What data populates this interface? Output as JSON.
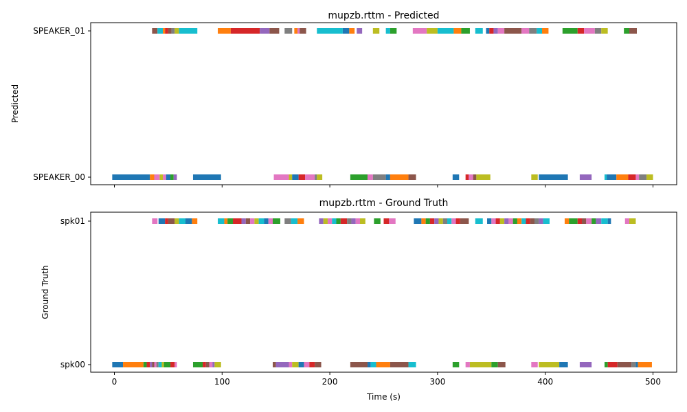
{
  "chart_data": [
    {
      "type": "timeline",
      "title": "mupzb.rttm - Predicted",
      "ylabel": "Predicted",
      "xlabel": "",
      "xlim": [
        -22,
        522
      ],
      "xticks": [
        0,
        100,
        200,
        300,
        400,
        500
      ],
      "xtick_labels_visible": false,
      "speakers": [
        "SPEAKER_00",
        "SPEAKER_01"
      ],
      "colors": [
        "#1f77b4",
        "#ff7f0e",
        "#2ca02c",
        "#d62728",
        "#9467bd",
        "#8c564b",
        "#e377c2",
        "#7f7f7f",
        "#bcbd22",
        "#17becf"
      ],
      "segments": [
        [
          "SPEAKER_01",
          35,
          40,
          "#8c564b"
        ],
        [
          "SPEAKER_01",
          40,
          45,
          "#17becf"
        ],
        [
          "SPEAKER_01",
          45,
          47,
          "#ff7f0e"
        ],
        [
          "SPEAKER_01",
          47,
          50,
          "#d62728"
        ],
        [
          "SPEAKER_01",
          50,
          53,
          "#8c564b"
        ],
        [
          "SPEAKER_01",
          53,
          56,
          "#7f7f7f"
        ],
        [
          "SPEAKER_01",
          56,
          60,
          "#bcbd22"
        ],
        [
          "SPEAKER_01",
          60,
          77,
          "#17becf"
        ],
        [
          "SPEAKER_01",
          96,
          108,
          "#ff7f0e"
        ],
        [
          "SPEAKER_01",
          108,
          135,
          "#d62728"
        ],
        [
          "SPEAKER_01",
          135,
          144,
          "#9467bd"
        ],
        [
          "SPEAKER_01",
          144,
          153,
          "#8c564b"
        ],
        [
          "SPEAKER_01",
          158,
          165,
          "#7f7f7f"
        ],
        [
          "SPEAKER_01",
          167,
          170,
          "#ff7f0e"
        ],
        [
          "SPEAKER_01",
          170,
          172,
          "#e377c2"
        ],
        [
          "SPEAKER_01",
          172,
          178,
          "#8c564b"
        ],
        [
          "SPEAKER_01",
          188,
          212,
          "#17becf"
        ],
        [
          "SPEAKER_01",
          212,
          218,
          "#1f77b4"
        ],
        [
          "SPEAKER_01",
          218,
          223,
          "#ff7f0e"
        ],
        [
          "SPEAKER_01",
          225,
          230,
          "#9467bd"
        ],
        [
          "SPEAKER_01",
          240,
          246,
          "#bcbd22"
        ],
        [
          "SPEAKER_01",
          252,
          256,
          "#17becf"
        ],
        [
          "SPEAKER_01",
          256,
          262,
          "#2ca02c"
        ],
        [
          "SPEAKER_01",
          277,
          290,
          "#e377c2"
        ],
        [
          "SPEAKER_01",
          290,
          300,
          "#bcbd22"
        ],
        [
          "SPEAKER_01",
          300,
          315,
          "#17becf"
        ],
        [
          "SPEAKER_01",
          315,
          322,
          "#ff7f0e"
        ],
        [
          "SPEAKER_01",
          322,
          330,
          "#2ca02c"
        ],
        [
          "SPEAKER_01",
          335,
          342,
          "#17becf"
        ],
        [
          "SPEAKER_01",
          345,
          348,
          "#1f77b4"
        ],
        [
          "SPEAKER_01",
          348,
          352,
          "#d62728"
        ],
        [
          "SPEAKER_01",
          352,
          356,
          "#9467bd"
        ],
        [
          "SPEAKER_01",
          356,
          362,
          "#e377c2"
        ],
        [
          "SPEAKER_01",
          362,
          378,
          "#8c564b"
        ],
        [
          "SPEAKER_01",
          378,
          385,
          "#e377c2"
        ],
        [
          "SPEAKER_01",
          385,
          392,
          "#7f7f7f"
        ],
        [
          "SPEAKER_01",
          392,
          397,
          "#17becf"
        ],
        [
          "SPEAKER_01",
          397,
          403,
          "#ff7f0e"
        ],
        [
          "SPEAKER_01",
          416,
          430,
          "#2ca02c"
        ],
        [
          "SPEAKER_01",
          430,
          436,
          "#d62728"
        ],
        [
          "SPEAKER_01",
          436,
          446,
          "#e377c2"
        ],
        [
          "SPEAKER_01",
          446,
          452,
          "#7f7f7f"
        ],
        [
          "SPEAKER_01",
          452,
          458,
          "#bcbd22"
        ],
        [
          "SPEAKER_01",
          473,
          478,
          "#2ca02c"
        ],
        [
          "SPEAKER_01",
          478,
          485,
          "#8c564b"
        ],
        [
          "SPEAKER_00",
          -2,
          33,
          "#1f77b4"
        ],
        [
          "SPEAKER_00",
          33,
          37,
          "#ff7f0e"
        ],
        [
          "SPEAKER_00",
          37,
          42,
          "#e377c2"
        ],
        [
          "SPEAKER_00",
          42,
          45,
          "#bcbd22"
        ],
        [
          "SPEAKER_00",
          45,
          48,
          "#e377c2"
        ],
        [
          "SPEAKER_00",
          48,
          52,
          "#1f77b4"
        ],
        [
          "SPEAKER_00",
          52,
          55,
          "#2ca02c"
        ],
        [
          "SPEAKER_00",
          55,
          58,
          "#9467bd"
        ],
        [
          "SPEAKER_00",
          73,
          99,
          "#1f77b4"
        ],
        [
          "SPEAKER_00",
          148,
          162,
          "#e377c2"
        ],
        [
          "SPEAKER_00",
          162,
          165,
          "#bcbd22"
        ],
        [
          "SPEAKER_00",
          165,
          171,
          "#1f77b4"
        ],
        [
          "SPEAKER_00",
          171,
          177,
          "#d62728"
        ],
        [
          "SPEAKER_00",
          177,
          186,
          "#e377c2"
        ],
        [
          "SPEAKER_00",
          186,
          188,
          "#7f7f7f"
        ],
        [
          "SPEAKER_00",
          188,
          193,
          "#bcbd22"
        ],
        [
          "SPEAKER_00",
          219,
          235,
          "#2ca02c"
        ],
        [
          "SPEAKER_00",
          235,
          240,
          "#e377c2"
        ],
        [
          "SPEAKER_00",
          240,
          252,
          "#7f7f7f"
        ],
        [
          "SPEAKER_00",
          252,
          256,
          "#1f77b4"
        ],
        [
          "SPEAKER_00",
          256,
          273,
          "#ff7f0e"
        ],
        [
          "SPEAKER_00",
          273,
          280,
          "#8c564b"
        ],
        [
          "SPEAKER_00",
          314,
          320,
          "#1f77b4"
        ],
        [
          "SPEAKER_00",
          326,
          329,
          "#d62728"
        ],
        [
          "SPEAKER_00",
          329,
          333,
          "#e377c2"
        ],
        [
          "SPEAKER_00",
          333,
          336,
          "#8c564b"
        ],
        [
          "SPEAKER_00",
          336,
          349,
          "#bcbd22"
        ],
        [
          "SPEAKER_00",
          387,
          393,
          "#bcbd22"
        ],
        [
          "SPEAKER_00",
          394,
          421,
          "#1f77b4"
        ],
        [
          "SPEAKER_00",
          432,
          443,
          "#9467bd"
        ],
        [
          "SPEAKER_00",
          455,
          457,
          "#17becf"
        ],
        [
          "SPEAKER_00",
          457,
          466,
          "#1f77b4"
        ],
        [
          "SPEAKER_00",
          466,
          477,
          "#ff7f0e"
        ],
        [
          "SPEAKER_00",
          477,
          484,
          "#d62728"
        ],
        [
          "SPEAKER_00",
          484,
          487,
          "#e377c2"
        ],
        [
          "SPEAKER_00",
          487,
          494,
          "#7f7f7f"
        ],
        [
          "SPEAKER_00",
          494,
          500,
          "#bcbd22"
        ]
      ]
    },
    {
      "type": "timeline",
      "title": "mupzb.rttm - Ground Truth",
      "ylabel": "Ground Truth",
      "xlabel": "Time (s)",
      "xlim": [
        -22,
        522
      ],
      "xticks": [
        0,
        100,
        200,
        300,
        400,
        500
      ],
      "xtick_labels_visible": true,
      "speakers": [
        "spk00",
        "spk01"
      ],
      "colors": [
        "#1f77b4",
        "#ff7f0e",
        "#2ca02c",
        "#d62728",
        "#9467bd",
        "#8c564b",
        "#e377c2",
        "#7f7f7f",
        "#bcbd22",
        "#17becf"
      ],
      "segments": [
        [
          "spk01",
          35,
          40,
          "#e377c2"
        ],
        [
          "spk01",
          41,
          47,
          "#1f77b4"
        ],
        [
          "spk01",
          47,
          50,
          "#d62728"
        ],
        [
          "spk01",
          50,
          56,
          "#8c564b"
        ],
        [
          "spk01",
          56,
          60,
          "#bcbd22"
        ],
        [
          "spk01",
          60,
          66,
          "#17becf"
        ],
        [
          "spk01",
          66,
          72,
          "#1f77b4"
        ],
        [
          "spk01",
          72,
          77,
          "#ff7f0e"
        ],
        [
          "spk01",
          96,
          102,
          "#17becf"
        ],
        [
          "spk01",
          102,
          105,
          "#ff7f0e"
        ],
        [
          "spk01",
          105,
          110,
          "#2ca02c"
        ],
        [
          "spk01",
          110,
          118,
          "#d62728"
        ],
        [
          "spk01",
          118,
          122,
          "#9467bd"
        ],
        [
          "spk01",
          122,
          126,
          "#8c564b"
        ],
        [
          "spk01",
          126,
          130,
          "#e377c2"
        ],
        [
          "spk01",
          130,
          134,
          "#bcbd22"
        ],
        [
          "spk01",
          134,
          139,
          "#17becf"
        ],
        [
          "spk01",
          139,
          143,
          "#1f77b4"
        ],
        [
          "spk01",
          143,
          147,
          "#e377c2"
        ],
        [
          "spk01",
          147,
          154,
          "#2ca02c"
        ],
        [
          "spk01",
          158,
          164,
          "#7f7f7f"
        ],
        [
          "spk01",
          164,
          170,
          "#17becf"
        ],
        [
          "spk01",
          170,
          176,
          "#ff7f0e"
        ],
        [
          "spk01",
          190,
          194,
          "#9467bd"
        ],
        [
          "spk01",
          194,
          198,
          "#bcbd22"
        ],
        [
          "spk01",
          198,
          202,
          "#e377c2"
        ],
        [
          "spk01",
          202,
          206,
          "#17becf"
        ],
        [
          "spk01",
          206,
          210,
          "#2ca02c"
        ],
        [
          "spk01",
          210,
          216,
          "#d62728"
        ],
        [
          "spk01",
          216,
          220,
          "#7f7f7f"
        ],
        [
          "spk01",
          220,
          224,
          "#9467bd"
        ],
        [
          "spk01",
          224,
          228,
          "#e377c2"
        ],
        [
          "spk01",
          228,
          233,
          "#bcbd22"
        ],
        [
          "spk01",
          241,
          247,
          "#2ca02c"
        ],
        [
          "spk01",
          250,
          255,
          "#d62728"
        ],
        [
          "spk01",
          255,
          261,
          "#e377c2"
        ],
        [
          "spk01",
          278,
          285,
          "#1f77b4"
        ],
        [
          "spk01",
          285,
          289,
          "#ff7f0e"
        ],
        [
          "spk01",
          289,
          293,
          "#2ca02c"
        ],
        [
          "spk01",
          293,
          297,
          "#d62728"
        ],
        [
          "spk01",
          297,
          301,
          "#9467bd"
        ],
        [
          "spk01",
          301,
          305,
          "#bcbd22"
        ],
        [
          "spk01",
          305,
          309,
          "#7f7f7f"
        ],
        [
          "spk01",
          309,
          313,
          "#17becf"
        ],
        [
          "spk01",
          313,
          317,
          "#e377c2"
        ],
        [
          "spk01",
          317,
          321,
          "#d62728"
        ],
        [
          "spk01",
          321,
          329,
          "#8c564b"
        ],
        [
          "spk01",
          335,
          342,
          "#17becf"
        ],
        [
          "spk01",
          346,
          350,
          "#1f77b4"
        ],
        [
          "spk01",
          350,
          354,
          "#e377c2"
        ],
        [
          "spk01",
          354,
          358,
          "#d62728"
        ],
        [
          "spk01",
          358,
          362,
          "#bcbd22"
        ],
        [
          "spk01",
          362,
          366,
          "#9467bd"
        ],
        [
          "spk01",
          366,
          370,
          "#e377c2"
        ],
        [
          "spk01",
          370,
          374,
          "#2ca02c"
        ],
        [
          "spk01",
          374,
          378,
          "#ff7f0e"
        ],
        [
          "spk01",
          378,
          382,
          "#17becf"
        ],
        [
          "spk01",
          382,
          386,
          "#d62728"
        ],
        [
          "spk01",
          386,
          390,
          "#8c564b"
        ],
        [
          "spk01",
          390,
          394,
          "#7f7f7f"
        ],
        [
          "spk01",
          394,
          398,
          "#9467bd"
        ],
        [
          "spk01",
          398,
          404,
          "#17becf"
        ],
        [
          "spk01",
          418,
          422,
          "#ff7f0e"
        ],
        [
          "spk01",
          422,
          430,
          "#2ca02c"
        ],
        [
          "spk01",
          430,
          434,
          "#d62728"
        ],
        [
          "spk01",
          434,
          438,
          "#8c564b"
        ],
        [
          "spk01",
          438,
          443,
          "#e377c2"
        ],
        [
          "spk01",
          443,
          447,
          "#2ca02c"
        ],
        [
          "spk01",
          447,
          452,
          "#9467bd"
        ],
        [
          "spk01",
          452,
          458,
          "#17becf"
        ],
        [
          "spk01",
          458,
          461,
          "#1f77b4"
        ],
        [
          "spk01",
          474,
          478,
          "#e377c2"
        ],
        [
          "spk01",
          478,
          484,
          "#bcbd22"
        ],
        [
          "spk00",
          -2,
          8,
          "#1f77b4"
        ],
        [
          "spk00",
          8,
          27,
          "#ff7f0e"
        ],
        [
          "spk00",
          27,
          30,
          "#2ca02c"
        ],
        [
          "spk00",
          30,
          33,
          "#d62728"
        ],
        [
          "spk00",
          33,
          35,
          "#9467bd"
        ],
        [
          "spk00",
          35,
          37,
          "#8c564b"
        ],
        [
          "spk00",
          37,
          39,
          "#e377c2"
        ],
        [
          "spk00",
          39,
          41,
          "#7f7f7f"
        ],
        [
          "spk00",
          41,
          44,
          "#17becf"
        ],
        [
          "spk00",
          44,
          46,
          "#bcbd22"
        ],
        [
          "spk00",
          46,
          52,
          "#2ca02c"
        ],
        [
          "spk00",
          52,
          56,
          "#d62728"
        ],
        [
          "spk00",
          56,
          58,
          "#e377c2"
        ],
        [
          "spk00",
          73,
          82,
          "#2ca02c"
        ],
        [
          "spk00",
          82,
          85,
          "#d62728"
        ],
        [
          "spk00",
          85,
          88,
          "#8c564b"
        ],
        [
          "spk00",
          88,
          91,
          "#e377c2"
        ],
        [
          "spk00",
          91,
          93,
          "#9467bd"
        ],
        [
          "spk00",
          93,
          99,
          "#bcbd22"
        ],
        [
          "spk00",
          147,
          150,
          "#8c564b"
        ],
        [
          "spk00",
          150,
          162,
          "#9467bd"
        ],
        [
          "spk00",
          162,
          165,
          "#e377c2"
        ],
        [
          "spk00",
          165,
          171,
          "#bcbd22"
        ],
        [
          "spk00",
          171,
          176,
          "#1f77b4"
        ],
        [
          "spk00",
          176,
          181,
          "#e377c2"
        ],
        [
          "spk00",
          181,
          186,
          "#d62728"
        ],
        [
          "spk00",
          186,
          192,
          "#8c564b"
        ],
        [
          "spk00",
          219,
          235,
          "#8c564b"
        ],
        [
          "spk00",
          235,
          238,
          "#1f77b4"
        ],
        [
          "spk00",
          238,
          243,
          "#17becf"
        ],
        [
          "spk00",
          243,
          256,
          "#ff7f0e"
        ],
        [
          "spk00",
          256,
          273,
          "#8c564b"
        ],
        [
          "spk00",
          273,
          280,
          "#17becf"
        ],
        [
          "spk00",
          314,
          320,
          "#2ca02c"
        ],
        [
          "spk00",
          326,
          330,
          "#e377c2"
        ],
        [
          "spk00",
          330,
          350,
          "#bcbd22"
        ],
        [
          "spk00",
          350,
          356,
          "#2ca02c"
        ],
        [
          "spk00",
          356,
          363,
          "#8c564b"
        ],
        [
          "spk00",
          387,
          393,
          "#e377c2"
        ],
        [
          "spk00",
          394,
          413,
          "#bcbd22"
        ],
        [
          "spk00",
          413,
          421,
          "#1f77b4"
        ],
        [
          "spk00",
          432,
          443,
          "#9467bd"
        ],
        [
          "spk00",
          455,
          458,
          "#2ca02c"
        ],
        [
          "spk00",
          458,
          467,
          "#d62728"
        ],
        [
          "spk00",
          467,
          480,
          "#8c564b"
        ],
        [
          "spk00",
          480,
          484,
          "#7f7f7f"
        ],
        [
          "spk00",
          484,
          486,
          "#1f77b4"
        ],
        [
          "spk00",
          486,
          499,
          "#ff7f0e"
        ]
      ]
    }
  ]
}
